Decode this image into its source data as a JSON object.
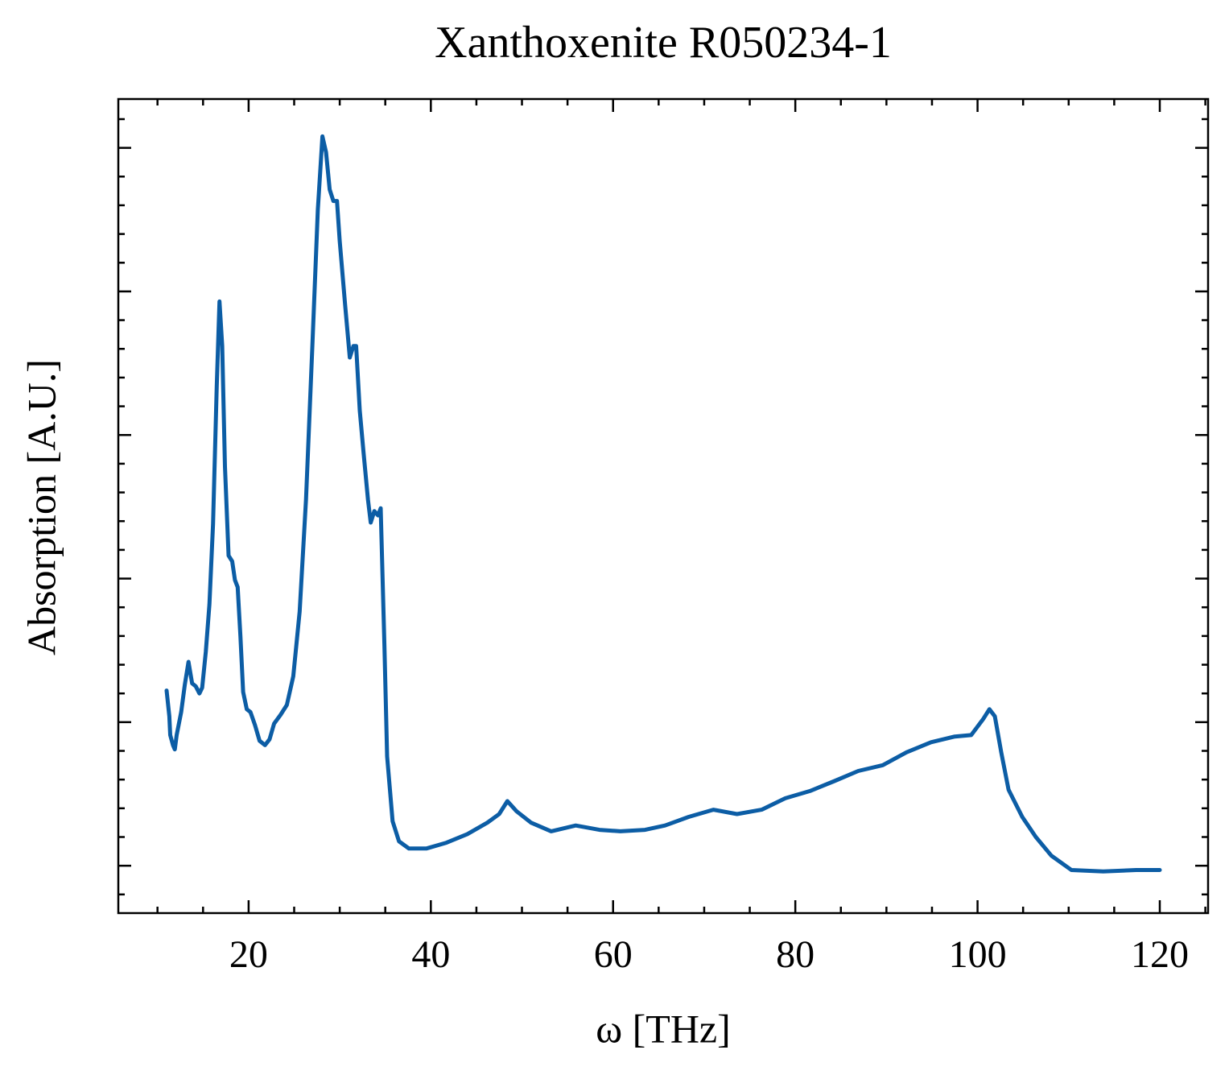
{
  "chart_data": {
    "type": "line",
    "title": "Xanthoxenite R050234-1",
    "xlabel": "ω [THz]",
    "ylabel": "Absorption [A.U.]",
    "xlim": [
      5.7,
      125.3
    ],
    "ylim": [
      -0.33,
      5.34
    ],
    "xticks": [
      20,
      40,
      60,
      80,
      100,
      120
    ],
    "yticks": [
      0,
      1,
      2,
      3,
      4,
      5
    ],
    "minor_xticks": [
      10,
      15,
      25,
      30,
      35,
      45,
      50,
      55,
      65,
      70,
      75,
      85,
      90,
      95,
      105,
      110,
      115,
      125
    ],
    "minor_yticks": [
      -0.2,
      0.2,
      0.4,
      0.6,
      0.8,
      1.2,
      1.4,
      1.6,
      1.8,
      2.2,
      2.4,
      2.6,
      2.8,
      3.2,
      3.4,
      3.6,
      3.8,
      4.2,
      4.4,
      4.6,
      4.8,
      5.2
    ],
    "ytick_labels": false,
    "series": [
      {
        "color": "#0C5DA5",
        "x": [
          11.0,
          11.3,
          11.4,
          11.7,
          11.9,
          12.1,
          12.6,
          13.0,
          13.4,
          13.8,
          14.2,
          14.6,
          14.9,
          15.3,
          15.7,
          16.1,
          16.5,
          16.8,
          17.1,
          17.4,
          17.8,
          18.2,
          18.5,
          18.8,
          19.1,
          19.4,
          19.8,
          20.2,
          20.7,
          21.2,
          21.8,
          22.3,
          22.8,
          23.5,
          24.2,
          24.9,
          25.6,
          26.3,
          27.0,
          27.6,
          28.1,
          28.5,
          28.9,
          29.3,
          29.7,
          30.0,
          30.6,
          31.1,
          31.5,
          31.8,
          32.2,
          32.6,
          33.1,
          33.4,
          33.8,
          34.2,
          34.5,
          34.9,
          35.2,
          35.8,
          36.5,
          37.6,
          39.5,
          41.7,
          44.0,
          46.2,
          47.5,
          48.4,
          49.4,
          51.0,
          53.2,
          55.9,
          58.5,
          60.8,
          63.5,
          65.7,
          68.3,
          71.0,
          73.6,
          76.3,
          78.9,
          81.6,
          84.3,
          86.9,
          89.6,
          92.2,
          94.9,
          97.5,
          99.3,
          100.6,
          101.3,
          101.9,
          102.6,
          103.4,
          104.9,
          106.4,
          108.1,
          110.3,
          113.8,
          117.4,
          120.0
        ],
        "values": [
          1.22,
          1.04,
          0.91,
          0.84,
          0.81,
          0.91,
          1.07,
          1.26,
          1.42,
          1.27,
          1.25,
          1.2,
          1.24,
          1.49,
          1.82,
          2.38,
          3.34,
          3.93,
          3.62,
          2.78,
          2.16,
          2.12,
          1.99,
          1.94,
          1.6,
          1.21,
          1.09,
          1.07,
          0.98,
          0.87,
          0.84,
          0.88,
          0.99,
          1.05,
          1.12,
          1.32,
          1.77,
          2.55,
          3.62,
          4.57,
          5.08,
          4.97,
          4.71,
          4.63,
          4.63,
          4.35,
          3.9,
          3.54,
          3.62,
          3.62,
          3.17,
          2.89,
          2.55,
          2.39,
          2.47,
          2.44,
          2.49,
          1.54,
          0.76,
          0.31,
          0.17,
          0.12,
          0.12,
          0.16,
          0.22,
          0.3,
          0.36,
          0.45,
          0.38,
          0.3,
          0.24,
          0.28,
          0.25,
          0.24,
          0.25,
          0.28,
          0.34,
          0.39,
          0.36,
          0.39,
          0.47,
          0.52,
          0.59,
          0.66,
          0.7,
          0.79,
          0.86,
          0.9,
          0.91,
          1.02,
          1.09,
          1.04,
          0.79,
          0.53,
          0.34,
          0.2,
          0.07,
          -0.03,
          -0.04,
          -0.03,
          -0.03
        ]
      }
    ]
  }
}
